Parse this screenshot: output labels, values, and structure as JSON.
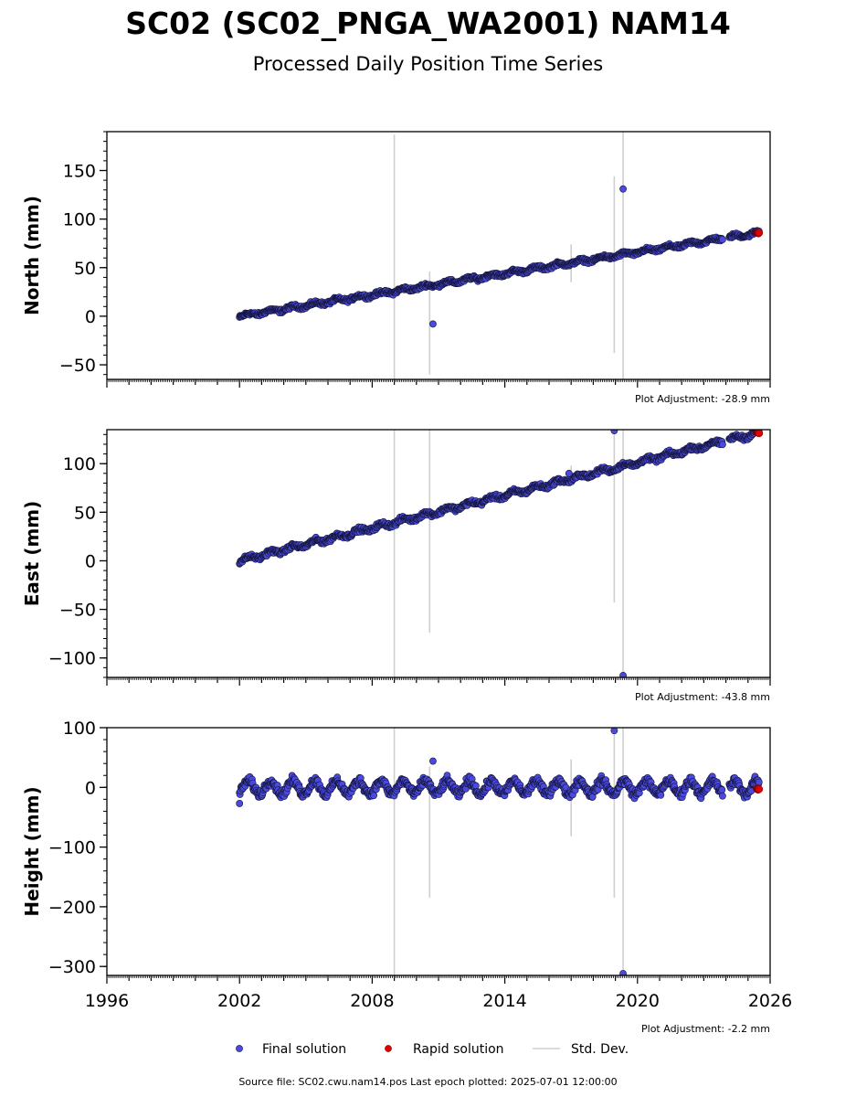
{
  "header": {
    "title": "SC02 (SC02_PNGA_WA2001) NAM14",
    "subtitle": "Processed Daily Position Time Series"
  },
  "footer": {
    "source_text": "Source file: SC02.cwu.nam14.pos  Last epoch plotted: 2025-07-01 12:00:00"
  },
  "legend": {
    "placement": "bottom-center",
    "final_label": "Final solution",
    "rapid_label": "Rapid solution",
    "std_label": "Std. Dev."
  },
  "colors": {
    "final_fill": "#4a4adf",
    "final_edge": "#15153a",
    "rapid_fill": "#e00000",
    "std_line": "#cfcfcf",
    "axis": "#000000"
  },
  "chart_data": [
    {
      "type": "scatter",
      "ylabel": "North (mm)",
      "adjustment_text": "Plot Adjustment: -28.9 mm",
      "xlim": [
        1996,
        2026
      ],
      "ylim": [
        -65,
        190
      ],
      "yticks": [
        -50,
        0,
        50,
        100,
        150
      ],
      "ytick_labels": [
        "−50",
        "0",
        "50",
        "100",
        "150"
      ],
      "trend": {
        "x0": 2002.0,
        "y0": 0,
        "x1": 2025.5,
        "y1": 86
      },
      "seasonal_amplitude": 1.5,
      "noise": 1.3,
      "gap": [
        2023.85,
        2024.15
      ],
      "outliers": [
        {
          "x": 2010.75,
          "y": -8
        },
        {
          "x": 2019.35,
          "y": 131
        }
      ],
      "std_bars": [
        {
          "x": 2009.0,
          "low": -65,
          "high": 187
        },
        {
          "x": 2010.6,
          "low": -60,
          "high": 46
        },
        {
          "x": 2017.0,
          "low": 35,
          "high": 74
        },
        {
          "x": 2018.95,
          "low": -38,
          "high": 144
        },
        {
          "x": 2019.35,
          "low": -65,
          "high": 190
        }
      ],
      "rapid": {
        "x0": 2025.4,
        "x1": 2025.5,
        "y": 86
      }
    },
    {
      "type": "scatter",
      "ylabel": "East (mm)",
      "adjustment_text": "Plot Adjustment: -43.8 mm",
      "xlim": [
        1996,
        2026
      ],
      "ylim": [
        -120,
        135
      ],
      "yticks": [
        -100,
        -50,
        0,
        50,
        100
      ],
      "ytick_labels": [
        "−100",
        "−50",
        "0",
        "50",
        "100"
      ],
      "trend": {
        "x0": 2002.0,
        "y0": 0,
        "x1": 2025.5,
        "y1": 132
      },
      "seasonal_amplitude": 2,
      "noise": 1.6,
      "gap": [
        2023.85,
        2024.15
      ],
      "outliers": [
        {
          "x": 2016.9,
          "y": 90
        },
        {
          "x": 2018.95,
          "y": 134
        },
        {
          "x": 2019.35,
          "y": -118
        }
      ],
      "std_bars": [
        {
          "x": 2009.0,
          "low": -120,
          "high": 135
        },
        {
          "x": 2010.6,
          "low": -74,
          "high": 135
        },
        {
          "x": 2017.0,
          "low": 80,
          "high": 98
        },
        {
          "x": 2018.95,
          "low": -43,
          "high": 135
        },
        {
          "x": 2019.35,
          "low": -120,
          "high": 135
        }
      ],
      "rapid": {
        "x0": 2025.4,
        "x1": 2025.5,
        "y": 132
      }
    },
    {
      "type": "scatter",
      "ylabel": "Height (mm)",
      "adjustment_text": "Plot Adjustment: -2.2 mm",
      "xlim": [
        1996,
        2026
      ],
      "ylim": [
        -315,
        100
      ],
      "yticks": [
        -300,
        -200,
        -100,
        0,
        100
      ],
      "ytick_labels": [
        "−300",
        "−200",
        "−100",
        "0",
        "100"
      ],
      "xtick_values": [
        1996,
        2002,
        2008,
        2014,
        2020,
        2026
      ],
      "xtick_labels": [
        "1996",
        "2002",
        "2008",
        "2014",
        "2020",
        "2026"
      ],
      "trend": {
        "x0": 2002.0,
        "y0": 0,
        "x1": 2025.5,
        "y1": 0
      },
      "seasonal_amplitude": 11,
      "noise": 5,
      "gap": [
        2023.85,
        2024.15
      ],
      "outliers": [
        {
          "x": 2010.75,
          "y": 44
        },
        {
          "x": 2018.95,
          "y": 95
        },
        {
          "x": 2019.35,
          "y": -312
        },
        {
          "x": 2002.0,
          "y": -27
        }
      ],
      "std_bars": [
        {
          "x": 2009.0,
          "low": -315,
          "high": 100
        },
        {
          "x": 2010.6,
          "low": -185,
          "high": 35
        },
        {
          "x": 2017.0,
          "low": -82,
          "high": 47
        },
        {
          "x": 2018.95,
          "low": -185,
          "high": 100
        },
        {
          "x": 2019.35,
          "low": -315,
          "high": 100
        }
      ],
      "rapid": {
        "x0": 2025.4,
        "x1": 2025.5,
        "y": -3
      }
    }
  ]
}
